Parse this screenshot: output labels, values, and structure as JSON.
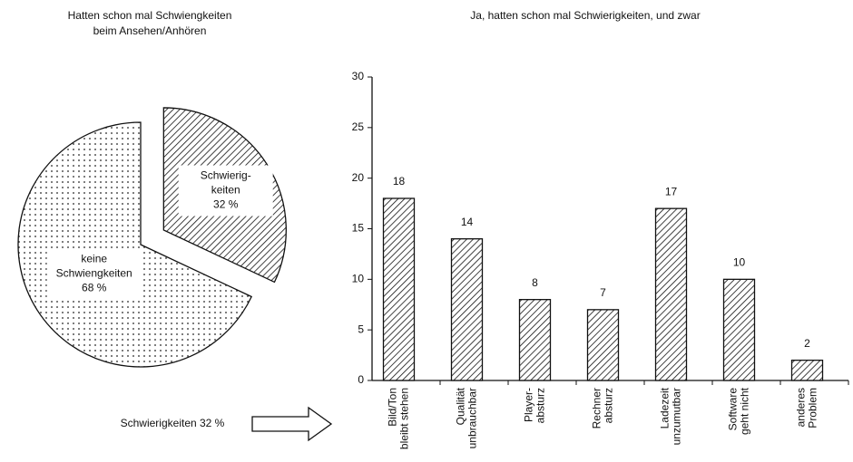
{
  "chart_data": [
    {
      "type": "pie",
      "title": [
        "Hatten schon mal Schwiengkeiten",
        "beim Ansehen/Anhören"
      ],
      "categories": [
        [
          "Schwierig-",
          "keiten"
        ],
        [
          "keine",
          "Schwiengkeiten"
        ]
      ],
      "values": [
        32,
        68
      ],
      "value_labels": [
        "32 %",
        "68 %"
      ]
    },
    {
      "type": "bar",
      "title": [
        "Ja, hatten schon mal Schwierigkeiten, und zwar"
      ],
      "categories": [
        [
          "Bild/Ton",
          "bleibt stehen"
        ],
        [
          "Qualität",
          "unbrauchbar"
        ],
        [
          "Player-",
          "absturz"
        ],
        [
          "Rechner",
          "absturz"
        ],
        [
          "Ladezeit",
          "unzumutbar"
        ],
        [
          "Software",
          "geht nicht"
        ],
        [
          "anderes",
          "Problem"
        ]
      ],
      "values": [
        18,
        14,
        8,
        7,
        17,
        10,
        2
      ],
      "ylim": [
        0,
        30
      ],
      "yticks": [
        0,
        5,
        10,
        15,
        20,
        25,
        30
      ]
    }
  ],
  "annotation": "Schwierigkeiten 32 %"
}
